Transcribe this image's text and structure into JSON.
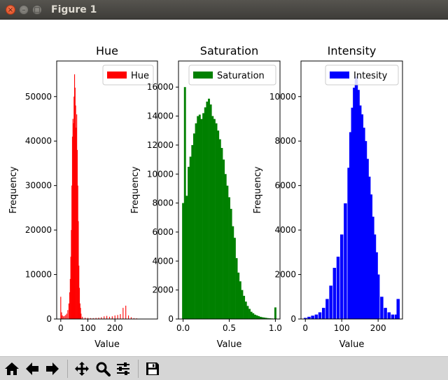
{
  "window": {
    "title": "Figure 1"
  },
  "toolbar": {
    "buttons": [
      {
        "id": "home",
        "icon": "home-icon"
      },
      {
        "id": "back",
        "icon": "arrow-left-icon"
      },
      {
        "id": "forward",
        "icon": "arrow-right-icon"
      },
      {
        "id": "pan",
        "icon": "move-icon"
      },
      {
        "id": "zoom",
        "icon": "magnifier-icon"
      },
      {
        "id": "configure",
        "icon": "sliders-icon"
      },
      {
        "id": "save",
        "icon": "floppy-disk-icon"
      }
    ]
  },
  "chart_data": [
    {
      "type": "bar",
      "title": "Hue",
      "xlabel": "Value",
      "ylabel": "Frequency",
      "color": "#ff0000",
      "legend": {
        "label": "Hue",
        "placement": "top-right"
      },
      "xlim": [
        -15,
        357
      ],
      "ylim": [
        0,
        58000
      ],
      "xticks": [
        0,
        100,
        200
      ],
      "yticks": [
        0,
        10000,
        20000,
        30000,
        40000,
        50000
      ],
      "series": [
        {
          "name": "Hue",
          "x": [
            0,
            3,
            6,
            10,
            14,
            18,
            22,
            26,
            30,
            33,
            35,
            37,
            39,
            41,
            43,
            45,
            47,
            49,
            51,
            53,
            55,
            57,
            59,
            61,
            63,
            65,
            67,
            69,
            71,
            73,
            75,
            80,
            90,
            100,
            110,
            120,
            130,
            140,
            150,
            160,
            170,
            180,
            190,
            200,
            210,
            220,
            230,
            240,
            250,
            260,
            270,
            280
          ],
          "values": [
            5000,
            1500,
            800,
            600,
            700,
            900,
            1200,
            2000,
            3500,
            6000,
            9000,
            14000,
            20000,
            30000,
            41000,
            45000,
            44000,
            50000,
            55000,
            52000,
            48000,
            43000,
            46000,
            38000,
            30000,
            22000,
            12000,
            7000,
            3500,
            2500,
            1200,
            500,
            300,
            250,
            200,
            200,
            250,
            300,
            400,
            600,
            700,
            500,
            600,
            800,
            900,
            1100,
            2500,
            3000,
            800,
            400,
            200,
            150
          ]
        }
      ]
    },
    {
      "type": "bar",
      "title": "Saturation",
      "xlabel": "Value",
      "ylabel": "Frequency",
      "color": "#008000",
      "legend": {
        "label": "Saturation",
        "placement": "top-right"
      },
      "xlim": [
        -0.05,
        1.05
      ],
      "ylim": [
        0,
        17800
      ],
      "xticks": [
        0.0,
        0.5,
        1.0
      ],
      "yticks": [
        0,
        2000,
        4000,
        6000,
        8000,
        10000,
        12000,
        14000,
        16000
      ],
      "series": [
        {
          "name": "Saturation",
          "x": [
            0.0,
            0.02,
            0.04,
            0.06,
            0.08,
            0.1,
            0.12,
            0.14,
            0.16,
            0.18,
            0.2,
            0.22,
            0.24,
            0.26,
            0.28,
            0.3,
            0.32,
            0.34,
            0.36,
            0.38,
            0.4,
            0.42,
            0.44,
            0.46,
            0.48,
            0.5,
            0.52,
            0.54,
            0.56,
            0.58,
            0.6,
            0.62,
            0.64,
            0.66,
            0.68,
            0.7,
            0.72,
            0.74,
            0.76,
            0.78,
            0.8,
            0.82,
            0.84,
            0.86,
            0.88,
            0.9,
            0.92,
            0.94,
            0.96,
            0.98,
            1.0
          ],
          "values": [
            8000,
            16000,
            8500,
            10500,
            11200,
            12000,
            12800,
            13500,
            14000,
            14100,
            13800,
            14200,
            14600,
            15000,
            15200,
            14800,
            14000,
            13800,
            13500,
            13000,
            12400,
            11800,
            11000,
            10000,
            9200,
            8400,
            7600,
            6400,
            5600,
            4200,
            3200,
            2600,
            2000,
            1600,
            1200,
            900,
            700,
            500,
            400,
            300,
            250,
            200,
            150,
            120,
            100,
            80,
            60,
            50,
            40,
            30,
            800
          ]
        }
      ]
    },
    {
      "type": "bar",
      "title": "Intensity",
      "xlabel": "Value",
      "ylabel": "Frequency",
      "color": "#0000ff",
      "legend": {
        "label": "Intesity",
        "placement": "top-right"
      },
      "xlim": [
        -12,
        267
      ],
      "ylim": [
        0,
        11600
      ],
      "xticks": [
        0,
        100,
        200
      ],
      "yticks": [
        0,
        2000,
        4000,
        6000,
        8000,
        10000
      ],
      "series": [
        {
          "name": "Intesity",
          "x": [
            0,
            10,
            20,
            30,
            40,
            50,
            60,
            70,
            80,
            90,
            100,
            110,
            120,
            125,
            130,
            135,
            140,
            145,
            150,
            155,
            160,
            165,
            170,
            175,
            180,
            185,
            190,
            195,
            200,
            210,
            220,
            230,
            240,
            250,
            255
          ],
          "values": [
            50,
            100,
            150,
            200,
            300,
            500,
            900,
            1500,
            2300,
            2800,
            3800,
            5200,
            6800,
            8400,
            9500,
            10400,
            10900,
            10300,
            9600,
            9200,
            8600,
            8000,
            7200,
            6400,
            5600,
            4600,
            3800,
            3000,
            2000,
            1000,
            500,
            300,
            200,
            200,
            900
          ]
        }
      ]
    }
  ]
}
